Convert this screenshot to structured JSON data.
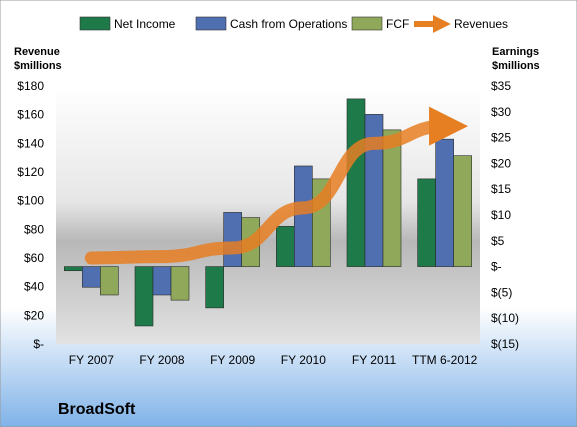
{
  "chart_data": {
    "type": "bar",
    "categories": [
      "FY 2007",
      "FY 2008",
      "FY 2009",
      "FY 2010",
      "FY 2011",
      "TTM 6-2012"
    ],
    "left_axis": {
      "label_line1": "Revenue",
      "label_line2": "$millions",
      "ticks": [
        "$-",
        "$20",
        "$40",
        "$60",
        "$80",
        "$100",
        "$120",
        "$140",
        "$160",
        "$180"
      ],
      "ylim": [
        0,
        180
      ]
    },
    "right_axis": {
      "label_line1": "Earnings",
      "label_line2": "$millions",
      "ticks": [
        "$(15)",
        "$(10)",
        "$(5)",
        "$-",
        "$5",
        "$10",
        "$15",
        "$20",
        "$25",
        "$30",
        "$35"
      ],
      "ylim": [
        -15,
        35
      ]
    },
    "series": [
      {
        "name": "Net Income",
        "axis": "right",
        "color": "#1f7a4a",
        "values": [
          -0.8,
          -11.5,
          -8,
          7.8,
          32.5,
          17
        ]
      },
      {
        "name": "Cash from Operations",
        "axis": "right",
        "color": "#4f6fb0",
        "values": [
          -4,
          -5.5,
          10.5,
          19.5,
          29.5,
          24.7
        ]
      },
      {
        "name": "FCF",
        "axis": "right",
        "color": "#8fa85a",
        "values": [
          -5.5,
          -6.5,
          9.5,
          17,
          26.5,
          21.5
        ]
      },
      {
        "name": "Revenues",
        "axis": "left",
        "type": "line-arrow",
        "color": "#e67e22",
        "values": [
          60,
          61,
          67,
          95,
          140,
          152
        ]
      }
    ],
    "company": "BroadSoft",
    "grid": false,
    "legend_position": "top"
  }
}
